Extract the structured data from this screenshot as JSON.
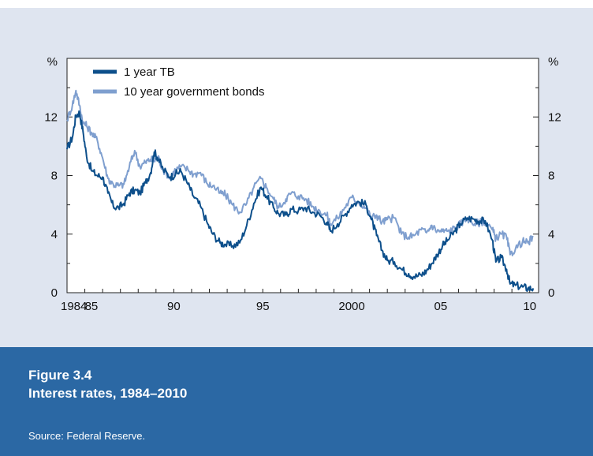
{
  "figure": {
    "number": "Figure 3.4",
    "title": "Interest rates, 1984–2010",
    "source": "Source: Federal Reserve."
  },
  "colors": {
    "panel_bg": "#dfe5f0",
    "caption_bg": "#2b68a4",
    "series_1yr": "#0d4f8b",
    "series_10yr": "#7f9fcf"
  },
  "chart_data": {
    "type": "line",
    "ylabel_left": "%",
    "ylabel_right": "%",
    "ylim": [
      0,
      16
    ],
    "yticks": [
      0,
      4,
      8,
      12
    ],
    "xlim": [
      1984,
      2010.5
    ],
    "xticks": [
      {
        "value": 1984,
        "label": "1984"
      },
      {
        "value": 1985,
        "label": "85"
      },
      {
        "value": 1990,
        "label": "90"
      },
      {
        "value": 1995,
        "label": "95"
      },
      {
        "value": 2000,
        "label": "2000"
      },
      {
        "value": 2005,
        "label": "05"
      },
      {
        "value": 2010,
        "label": "10"
      }
    ],
    "grid": false,
    "legend_position": "top-left",
    "series": [
      {
        "name": "1 year TB",
        "points": [
          [
            1984.0,
            9.8
          ],
          [
            1984.3,
            10.6
          ],
          [
            1984.5,
            12.1
          ],
          [
            1984.7,
            12.3
          ],
          [
            1984.9,
            11.0
          ],
          [
            1985.1,
            9.3
          ],
          [
            1985.4,
            8.3
          ],
          [
            1985.7,
            8.0
          ],
          [
            1986.0,
            7.9
          ],
          [
            1986.3,
            6.8
          ],
          [
            1986.6,
            5.9
          ],
          [
            1986.9,
            5.8
          ],
          [
            1987.2,
            6.1
          ],
          [
            1987.5,
            6.8
          ],
          [
            1987.8,
            7.0
          ],
          [
            1988.1,
            6.8
          ],
          [
            1988.4,
            7.5
          ],
          [
            1988.7,
            8.2
          ],
          [
            1988.9,
            9.6
          ],
          [
            1989.1,
            9.2
          ],
          [
            1989.4,
            8.4
          ],
          [
            1989.8,
            7.9
          ],
          [
            1990.1,
            8.1
          ],
          [
            1990.4,
            8.3
          ],
          [
            1990.8,
            7.4
          ],
          [
            1991.1,
            6.6
          ],
          [
            1991.5,
            5.9
          ],
          [
            1991.9,
            4.7
          ],
          [
            1992.2,
            4.0
          ],
          [
            1992.6,
            3.4
          ],
          [
            1992.9,
            3.3
          ],
          [
            1993.3,
            3.2
          ],
          [
            1993.7,
            3.4
          ],
          [
            1994.1,
            4.6
          ],
          [
            1994.5,
            6.1
          ],
          [
            1994.9,
            7.2
          ],
          [
            1995.2,
            6.6
          ],
          [
            1995.6,
            5.8
          ],
          [
            1995.9,
            5.4
          ],
          [
            1996.3,
            5.3
          ],
          [
            1996.6,
            5.7
          ],
          [
            1997.0,
            5.6
          ],
          [
            1997.4,
            5.8
          ],
          [
            1997.8,
            5.5
          ],
          [
            1998.2,
            5.3
          ],
          [
            1998.6,
            4.8
          ],
          [
            1998.8,
            4.2
          ],
          [
            1999.2,
            4.7
          ],
          [
            1999.6,
            5.3
          ],
          [
            2000.0,
            6.0
          ],
          [
            2000.4,
            6.2
          ],
          [
            2000.8,
            6.0
          ],
          [
            2001.1,
            5.0
          ],
          [
            2001.4,
            3.9
          ],
          [
            2001.7,
            2.9
          ],
          [
            2002.0,
            2.2
          ],
          [
            2002.4,
            2.1
          ],
          [
            2002.8,
            1.6
          ],
          [
            2003.2,
            1.3
          ],
          [
            2003.5,
            1.1
          ],
          [
            2003.9,
            1.2
          ],
          [
            2004.2,
            1.5
          ],
          [
            2004.5,
            2.0
          ],
          [
            2004.8,
            2.6
          ],
          [
            2005.1,
            3.2
          ],
          [
            2005.4,
            3.6
          ],
          [
            2005.8,
            4.2
          ],
          [
            2006.1,
            4.7
          ],
          [
            2006.5,
            5.1
          ],
          [
            2006.9,
            5.0
          ],
          [
            2007.2,
            4.9
          ],
          [
            2007.5,
            4.9
          ],
          [
            2007.9,
            3.6
          ],
          [
            2008.1,
            2.1
          ],
          [
            2008.4,
            2.4
          ],
          [
            2008.7,
            1.6
          ],
          [
            2008.9,
            0.6
          ],
          [
            2009.2,
            0.5
          ],
          [
            2009.6,
            0.4
          ],
          [
            2009.9,
            0.3
          ],
          [
            2010.2,
            0.3
          ]
        ]
      },
      {
        "name": "10 year government bonds",
        "points": [
          [
            1984.0,
            11.8
          ],
          [
            1984.3,
            12.8
          ],
          [
            1984.5,
            13.8
          ],
          [
            1984.7,
            12.8
          ],
          [
            1984.9,
            11.6
          ],
          [
            1985.1,
            11.4
          ],
          [
            1985.4,
            10.9
          ],
          [
            1985.7,
            10.4
          ],
          [
            1986.0,
            9.2
          ],
          [
            1986.3,
            7.8
          ],
          [
            1986.6,
            7.4
          ],
          [
            1986.9,
            7.3
          ],
          [
            1987.2,
            7.4
          ],
          [
            1987.5,
            8.6
          ],
          [
            1987.8,
            9.7
          ],
          [
            1988.1,
            8.6
          ],
          [
            1988.4,
            8.9
          ],
          [
            1988.7,
            9.1
          ],
          [
            1988.9,
            9.0
          ],
          [
            1989.1,
            9.3
          ],
          [
            1989.4,
            8.4
          ],
          [
            1989.8,
            7.9
          ],
          [
            1990.1,
            8.4
          ],
          [
            1990.4,
            8.6
          ],
          [
            1990.8,
            8.4
          ],
          [
            1991.1,
            8.1
          ],
          [
            1991.5,
            8.2
          ],
          [
            1991.9,
            7.4
          ],
          [
            1992.2,
            7.3
          ],
          [
            1992.6,
            6.8
          ],
          [
            1992.9,
            6.7
          ],
          [
            1993.3,
            6.0
          ],
          [
            1993.7,
            5.5
          ],
          [
            1994.1,
            6.1
          ],
          [
            1994.5,
            7.2
          ],
          [
            1994.9,
            7.8
          ],
          [
            1995.2,
            7.2
          ],
          [
            1995.6,
            6.4
          ],
          [
            1995.9,
            5.8
          ],
          [
            1996.3,
            6.4
          ],
          [
            1996.6,
            6.8
          ],
          [
            1997.0,
            6.6
          ],
          [
            1997.4,
            6.4
          ],
          [
            1997.8,
            5.9
          ],
          [
            1998.2,
            5.6
          ],
          [
            1998.6,
            5.3
          ],
          [
            1998.8,
            4.7
          ],
          [
            1999.2,
            5.1
          ],
          [
            1999.6,
            5.8
          ],
          [
            2000.0,
            6.5
          ],
          [
            2000.4,
            6.2
          ],
          [
            2000.8,
            5.8
          ],
          [
            2001.1,
            5.1
          ],
          [
            2001.4,
            5.3
          ],
          [
            2001.7,
            4.8
          ],
          [
            2002.0,
            5.0
          ],
          [
            2002.4,
            5.1
          ],
          [
            2002.8,
            4.0
          ],
          [
            2003.2,
            3.8
          ],
          [
            2003.5,
            3.9
          ],
          [
            2003.9,
            4.3
          ],
          [
            2004.2,
            4.1
          ],
          [
            2004.5,
            4.6
          ],
          [
            2004.8,
            4.2
          ],
          [
            2005.1,
            4.2
          ],
          [
            2005.4,
            4.2
          ],
          [
            2005.8,
            4.4
          ],
          [
            2006.1,
            4.7
          ],
          [
            2006.5,
            5.1
          ],
          [
            2006.9,
            4.7
          ],
          [
            2007.2,
            4.8
          ],
          [
            2007.5,
            4.9
          ],
          [
            2007.9,
            4.3
          ],
          [
            2008.1,
            3.7
          ],
          [
            2008.4,
            4.0
          ],
          [
            2008.7,
            3.8
          ],
          [
            2008.9,
            2.6
          ],
          [
            2009.2,
            3.0
          ],
          [
            2009.6,
            3.5
          ],
          [
            2009.9,
            3.4
          ],
          [
            2010.2,
            3.8
          ]
        ]
      }
    ]
  }
}
